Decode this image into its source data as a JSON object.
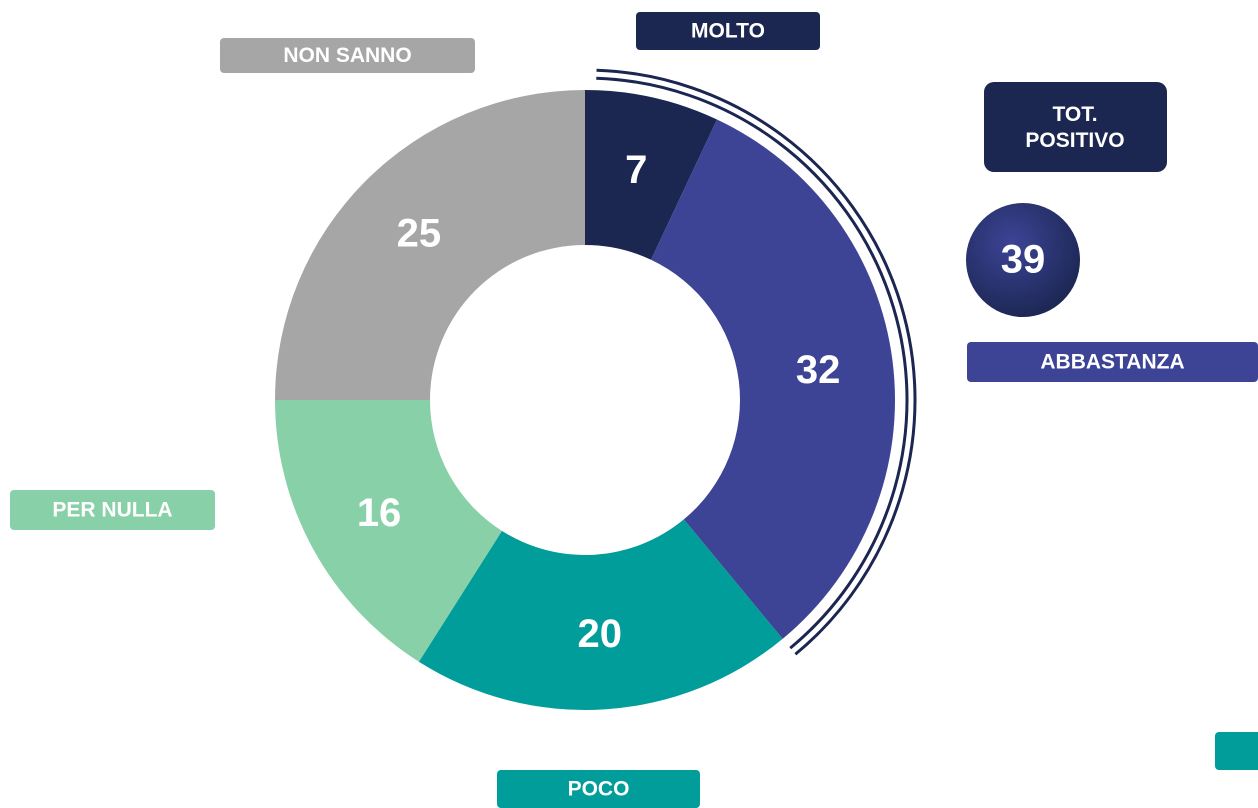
{
  "chart_data": {
    "type": "donut",
    "categories": [
      "MOLTO",
      "ABBASTANZA",
      "POCO",
      "PER NULLA",
      "NON SANNO"
    ],
    "values": [
      7,
      32,
      20,
      16,
      25
    ],
    "colors": [
      "#1b2651",
      "#3d4496",
      "#009d9a",
      "#88d1a8",
      "#a6a6a6"
    ],
    "total": {
      "label": "TOT. POSITIVO",
      "value": 39
    }
  }
}
